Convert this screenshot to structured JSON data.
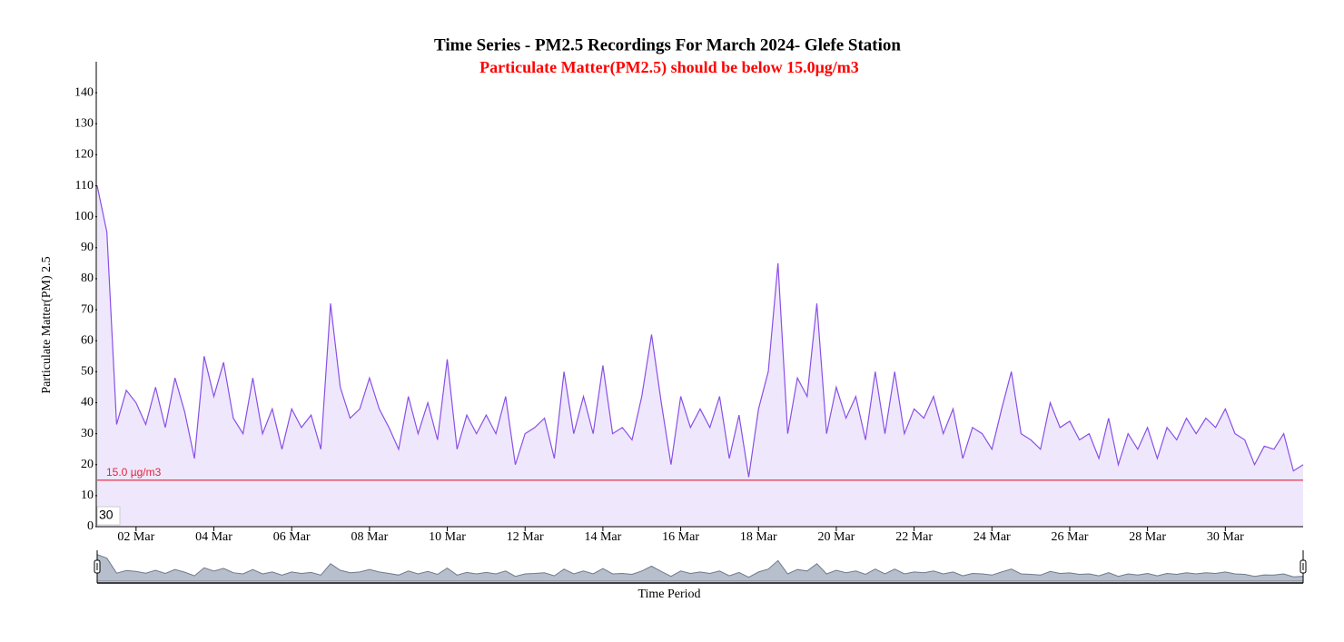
{
  "chart_data": {
    "type": "area",
    "title": "Time Series - PM2.5 Recordings For March 2024- Glefe Station",
    "subtitle": "Particulate Matter(PM2.5) should be below 15.0μg/m3",
    "y_label": "Particulate Matter(PM) 2.5",
    "x_label": "Time Period",
    "corner_label": "30",
    "threshold": {
      "value": 15,
      "label": "15.0 µg/m3",
      "color": "#e8203a"
    },
    "xlim": [
      1,
      32
    ],
    "ylim": [
      0,
      150
    ],
    "yticks": [
      0,
      10,
      20,
      30,
      40,
      50,
      60,
      70,
      80,
      90,
      100,
      110,
      120,
      130,
      140
    ],
    "xticks": [
      {
        "value": 2,
        "label": "02 Mar"
      },
      {
        "value": 4,
        "label": "04 Mar"
      },
      {
        "value": 6,
        "label": "06 Mar"
      },
      {
        "value": 8,
        "label": "08 Mar"
      },
      {
        "value": 10,
        "label": "10 Mar"
      },
      {
        "value": 12,
        "label": "12 Mar"
      },
      {
        "value": 14,
        "label": "14 Mar"
      },
      {
        "value": 16,
        "label": "16 Mar"
      },
      {
        "value": 18,
        "label": "18 Mar"
      },
      {
        "value": 20,
        "label": "20 Mar"
      },
      {
        "value": 22,
        "label": "22 Mar"
      },
      {
        "value": 24,
        "label": "24 Mar"
      },
      {
        "value": 26,
        "label": "26 Mar"
      },
      {
        "value": 28,
        "label": "28 Mar"
      },
      {
        "value": 30,
        "label": "30 Mar"
      }
    ],
    "x": [
      1,
      1.25,
      1.5,
      1.75,
      2,
      2.25,
      2.5,
      2.75,
      3,
      3.25,
      3.5,
      3.75,
      4,
      4.25,
      4.5,
      4.75,
      5,
      5.25,
      5.5,
      5.75,
      6,
      6.25,
      6.5,
      6.75,
      7,
      7.25,
      7.5,
      7.75,
      8,
      8.25,
      8.5,
      8.75,
      9,
      9.25,
      9.5,
      9.75,
      10,
      10.25,
      10.5,
      10.75,
      11,
      11.25,
      11.5,
      11.75,
      12,
      12.25,
      12.5,
      12.75,
      13,
      13.25,
      13.5,
      13.75,
      14,
      14.25,
      14.5,
      14.75,
      15,
      15.25,
      15.5,
      15.75,
      16,
      16.25,
      16.5,
      16.75,
      17,
      17.25,
      17.5,
      17.75,
      18,
      18.25,
      18.5,
      18.75,
      19,
      19.25,
      19.5,
      19.75,
      20,
      20.25,
      20.5,
      20.75,
      21,
      21.25,
      21.5,
      21.75,
      22,
      22.25,
      22.5,
      22.75,
      23,
      23.25,
      23.5,
      23.75,
      24,
      24.25,
      24.5,
      24.75,
      25,
      25.25,
      25.5,
      25.75,
      26,
      26.25,
      26.5,
      26.75,
      27,
      27.25,
      27.5,
      27.75,
      28,
      28.25,
      28.5,
      28.75,
      29,
      29.25,
      29.5,
      29.75,
      30,
      30.25,
      30.5,
      30.75,
      31,
      31.25,
      31.5,
      31.75,
      32
    ],
    "series": [
      {
        "name": "PM2.5",
        "color": "#8a4fe8",
        "fill": "#efe8fc",
        "values": [
          110,
          95,
          33,
          44,
          40,
          33,
          45,
          32,
          48,
          37,
          22,
          55,
          42,
          53,
          35,
          30,
          48,
          30,
          38,
          25,
          38,
          32,
          36,
          25,
          72,
          45,
          35,
          38,
          48,
          38,
          32,
          25,
          42,
          30,
          40,
          28,
          54,
          25,
          36,
          30,
          36,
          30,
          42,
          20,
          30,
          32,
          35,
          22,
          50,
          30,
          42,
          30,
          52,
          30,
          32,
          28,
          42,
          62,
          40,
          20,
          42,
          32,
          38,
          32,
          42,
          22,
          36,
          16,
          38,
          50,
          85,
          30,
          48,
          42,
          72,
          30,
          45,
          35,
          42,
          28,
          50,
          30,
          50,
          30,
          38,
          35,
          42,
          30,
          38,
          22,
          32,
          30,
          25,
          38,
          50,
          30,
          28,
          25,
          40,
          32,
          34,
          28,
          30,
          22,
          35,
          20,
          30,
          25,
          32,
          22,
          32,
          28,
          35,
          30,
          35,
          32,
          38,
          30,
          28,
          20,
          26,
          25,
          30,
          18,
          20
        ]
      }
    ]
  }
}
